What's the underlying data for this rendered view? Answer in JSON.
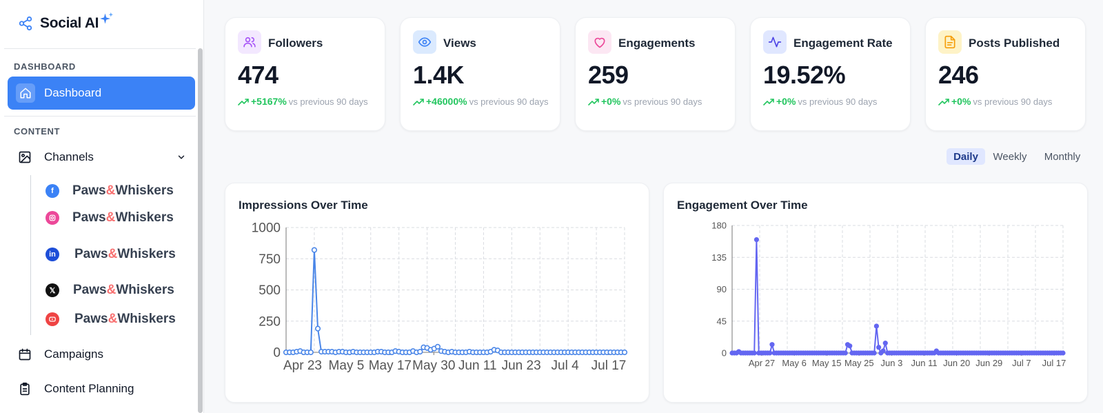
{
  "sidebar": {
    "brand": "Social AI",
    "section_dashboard": "DASHBOARD",
    "dashboard_label": "Dashboard",
    "section_content": "CONTENT",
    "channels_label": "Channels",
    "channels": [
      {
        "network": "facebook",
        "pre": "Paws",
        "amp": "&",
        "post": "Whiskers",
        "color": "#3b82f6"
      },
      {
        "network": "instagram",
        "pre": "Paws",
        "amp": "&",
        "post": "Whiskers",
        "color": "#ec4899"
      },
      {
        "network": "linkedin",
        "pre": "Paws",
        "amp": "&",
        "post": "Whiskers",
        "color": "#1d4ed8"
      },
      {
        "network": "x",
        "pre": "Paws",
        "amp": "&",
        "post": "Whiskers",
        "color": "#111111"
      },
      {
        "network": "youtube",
        "pre": "Paws",
        "amp": "&",
        "post": "Whiskers",
        "color": "#ef4444"
      }
    ],
    "campaigns_label": "Campaigns",
    "content_planning_label": "Content Planning"
  },
  "stats": [
    {
      "title": "Followers",
      "value": "474",
      "change": "+5167%",
      "compare": "vs previous 90 days",
      "icon": "users-icon",
      "color": "#a855f7",
      "bg": "#f3e8ff"
    },
    {
      "title": "Views",
      "value": "1.4K",
      "change": "+46000%",
      "compare": "vs previous 90 days",
      "icon": "eye-icon",
      "color": "#3b82f6",
      "bg": "#dbeafe"
    },
    {
      "title": "Engagements",
      "value": "259",
      "change": "+0%",
      "compare": "vs previous 90 days",
      "icon": "heart-icon",
      "color": "#ec4899",
      "bg": "#fce7f3"
    },
    {
      "title": "Engagement Rate",
      "value": "19.52%",
      "change": "+0%",
      "compare": "vs previous 90 days",
      "icon": "activity-icon",
      "color": "#4f46e5",
      "bg": "#e0e7ff"
    },
    {
      "title": "Posts Published",
      "value": "246",
      "change": "+0%",
      "compare": "vs previous 90 days",
      "icon": "document-icon",
      "color": "#f59e0b",
      "bg": "#fef3c7"
    }
  ],
  "range_tabs": {
    "daily": "Daily",
    "weekly": "Weekly",
    "monthly": "Monthly",
    "selected": "Daily"
  },
  "panels": {
    "impressions_title": "Impressions Over Time",
    "engagement_title": "Engagement Over Time"
  },
  "chart_data": [
    {
      "type": "line",
      "title": "Impressions Over Time",
      "color": "#4a86e8",
      "marker": "hollow-circle",
      "grid": true,
      "ylim": [
        0,
        1000
      ],
      "yticks": [
        0,
        250,
        500,
        750,
        1000
      ],
      "xticks": [
        "Apr 23",
        "May 5",
        "May 17",
        "May 30",
        "Jun 11",
        "Jun 23",
        "Jul 4",
        "Jul 17"
      ],
      "values": [
        0,
        0,
        0,
        5,
        10,
        0,
        0,
        0,
        820,
        190,
        5,
        5,
        5,
        5,
        0,
        5,
        5,
        0,
        0,
        5,
        0,
        0,
        0,
        0,
        0,
        0,
        5,
        5,
        0,
        0,
        0,
        10,
        5,
        0,
        0,
        0,
        10,
        0,
        5,
        40,
        35,
        20,
        30,
        45,
        10,
        5,
        0,
        5,
        0,
        0,
        0,
        0,
        5,
        0,
        0,
        0,
        0,
        0,
        5,
        20,
        15,
        0,
        0,
        0,
        0,
        0,
        0,
        0,
        0,
        0,
        0,
        0,
        0,
        0,
        0,
        0,
        0,
        0,
        0,
        0,
        0,
        0,
        0,
        0,
        0,
        0,
        0,
        0,
        0,
        0,
        0,
        0,
        0,
        0,
        0,
        0,
        0
      ]
    },
    {
      "type": "line",
      "title": "Engagement Over Time",
      "color": "#6366f1",
      "marker": "filled-circle",
      "grid": true,
      "ylim": [
        0,
        180
      ],
      "yticks": [
        0,
        45,
        90,
        135,
        180
      ],
      "xticks": [
        "Apr 27",
        "May 6",
        "May 15",
        "May 25",
        "Jun 3",
        "Jun 11",
        "Jun 20",
        "Jun 29",
        "Jul 7",
        "Jul 17"
      ],
      "values": [
        0,
        0,
        0,
        2,
        0,
        0,
        0,
        0,
        0,
        0,
        0,
        160,
        0,
        0,
        0,
        0,
        0,
        0,
        12,
        0,
        0,
        0,
        0,
        0,
        0,
        0,
        0,
        0,
        0,
        0,
        0,
        0,
        0,
        0,
        0,
        0,
        0,
        0,
        0,
        0,
        0,
        0,
        0,
        0,
        0,
        0,
        0,
        0,
        0,
        0,
        0,
        0,
        12,
        10,
        0,
        0,
        0,
        0,
        0,
        0,
        0,
        0,
        0,
        0,
        0,
        38,
        8,
        0,
        3,
        14,
        0,
        0,
        0,
        0,
        0,
        0,
        0,
        0,
        0,
        0,
        0,
        0,
        0,
        0,
        0,
        0,
        0,
        0,
        0,
        0,
        0,
        0,
        3,
        0,
        0,
        0,
        0,
        0,
        0,
        0,
        0,
        0,
        0,
        0,
        0,
        0,
        0,
        0,
        0,
        0,
        0,
        0,
        0,
        0,
        0,
        0,
        0,
        0,
        0,
        0,
        0,
        0,
        0,
        0,
        0,
        0,
        0,
        0,
        0,
        0,
        0,
        0,
        0,
        0,
        0,
        0,
        0,
        0,
        0,
        0,
        0,
        0,
        0,
        0,
        0,
        0,
        0,
        0,
        0,
        0
      ]
    }
  ]
}
